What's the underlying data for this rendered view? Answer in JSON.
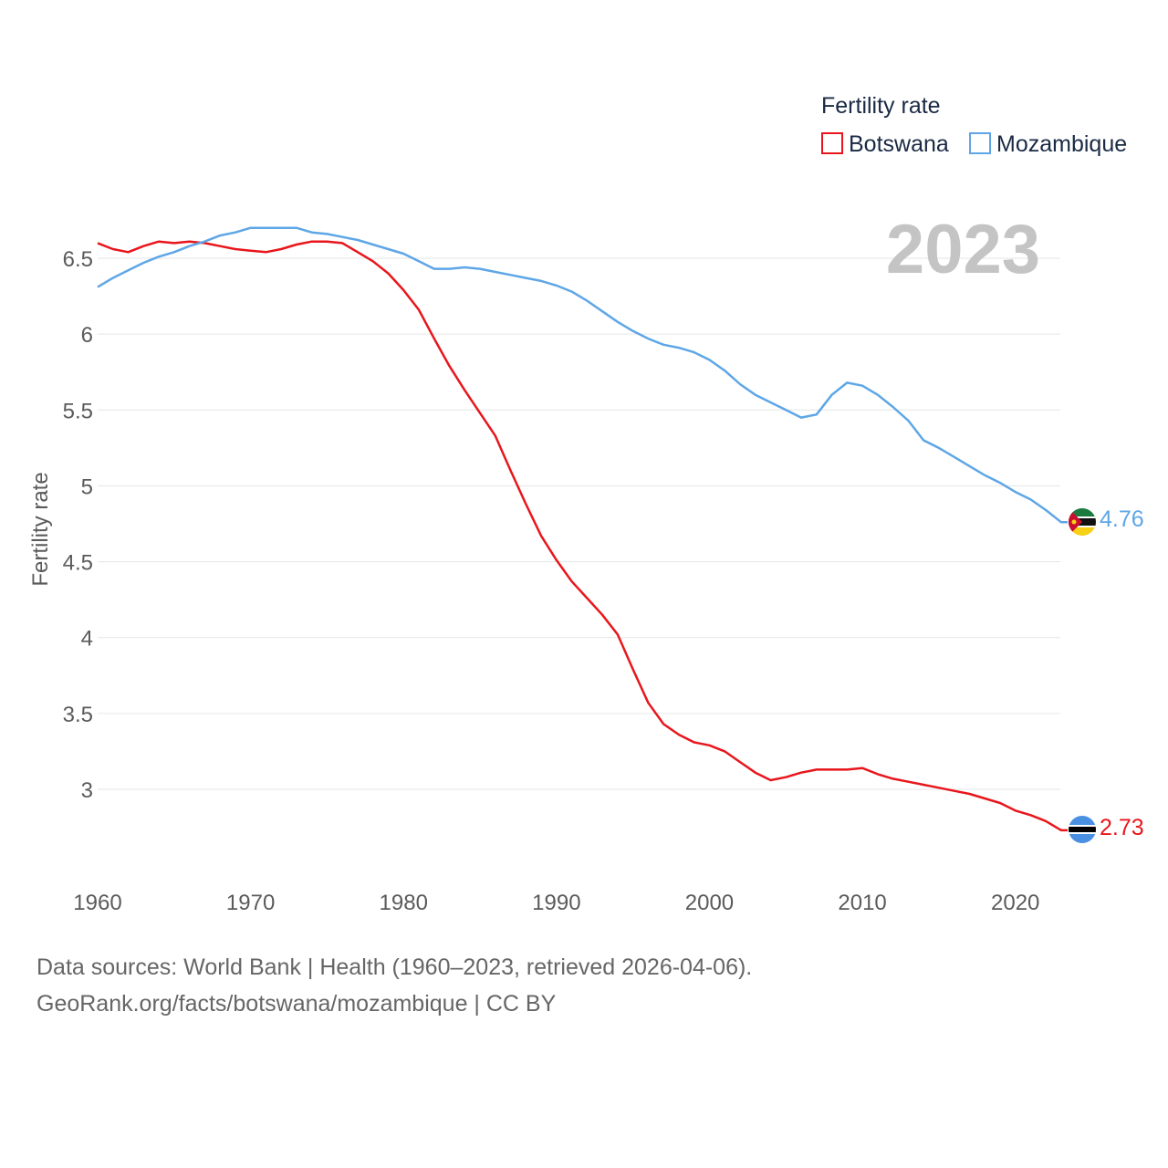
{
  "chart_data": {
    "type": "line",
    "title": "",
    "legend_title": "Fertility rate",
    "ylabel": "Fertility rate",
    "xlabel": "",
    "current_year": "2023",
    "xlim": [
      1960,
      2023
    ],
    "ylim": [
      2.5,
      6.85
    ],
    "yticks": [
      3,
      3.5,
      4,
      4.5,
      5,
      5.5,
      6,
      6.5
    ],
    "ytick_labels": [
      "3",
      "3.5",
      "4",
      "4.5",
      "5",
      "5.5",
      "6",
      "6.5"
    ],
    "xticks": [
      1960,
      1970,
      1980,
      1990,
      2000,
      2010,
      2020
    ],
    "xtick_labels": [
      "1960",
      "1970",
      "1980",
      "1990",
      "2000",
      "2010",
      "2020"
    ],
    "legend_placement": "top-right",
    "grid": true,
    "x": [
      1960,
      1961,
      1962,
      1963,
      1964,
      1965,
      1966,
      1967,
      1968,
      1969,
      1970,
      1971,
      1972,
      1973,
      1974,
      1975,
      1976,
      1977,
      1978,
      1979,
      1980,
      1981,
      1982,
      1983,
      1984,
      1985,
      1986,
      1987,
      1988,
      1989,
      1990,
      1991,
      1992,
      1993,
      1994,
      1995,
      1996,
      1997,
      1998,
      1999,
      2000,
      2001,
      2002,
      2003,
      2004,
      2005,
      2006,
      2007,
      2008,
      2009,
      2010,
      2011,
      2012,
      2013,
      2014,
      2015,
      2016,
      2017,
      2018,
      2019,
      2020,
      2021,
      2022,
      2023
    ],
    "series": [
      {
        "name": "Botswana",
        "color": "#e8161c",
        "end_label": "2.73",
        "values": [
          6.6,
          6.56,
          6.54,
          6.58,
          6.61,
          6.6,
          6.61,
          6.6,
          6.58,
          6.56,
          6.55,
          6.54,
          6.56,
          6.59,
          6.61,
          6.61,
          6.6,
          6.54,
          6.48,
          6.4,
          6.29,
          6.16,
          5.97,
          5.79,
          5.63,
          5.48,
          5.33,
          5.1,
          4.88,
          4.67,
          4.51,
          4.37,
          4.26,
          4.15,
          4.02,
          3.79,
          3.57,
          3.43,
          3.36,
          3.31,
          3.29,
          3.25,
          3.18,
          3.11,
          3.06,
          3.08,
          3.11,
          3.13,
          3.13,
          3.13,
          3.14,
          3.1,
          3.07,
          3.05,
          3.03,
          3.01,
          2.99,
          2.97,
          2.94,
          2.91,
          2.86,
          2.83,
          2.79,
          2.73
        ]
      },
      {
        "name": "Mozambique",
        "color": "#5ea6e6",
        "end_label": "4.76",
        "values": [
          6.31,
          6.37,
          6.42,
          6.47,
          6.51,
          6.54,
          6.58,
          6.61,
          6.65,
          6.67,
          6.7,
          6.7,
          6.7,
          6.7,
          6.67,
          6.66,
          6.64,
          6.62,
          6.59,
          6.56,
          6.53,
          6.48,
          6.43,
          6.43,
          6.44,
          6.43,
          6.41,
          6.39,
          6.37,
          6.35,
          6.32,
          6.28,
          6.22,
          6.15,
          6.08,
          6.02,
          5.97,
          5.93,
          5.91,
          5.88,
          5.83,
          5.76,
          5.67,
          5.6,
          5.55,
          5.5,
          5.45,
          5.47,
          5.6,
          5.68,
          5.66,
          5.6,
          5.52,
          5.43,
          5.3,
          5.25,
          5.19,
          5.13,
          5.07,
          5.02,
          4.96,
          4.91,
          4.84,
          4.76
        ]
      }
    ]
  },
  "source": {
    "line1": "Data sources: World Bank | Health (1960–2023, retrieved 2026-04-06).",
    "line2": "GeoRank.org/facts/botswana/mozambique | CC BY"
  }
}
